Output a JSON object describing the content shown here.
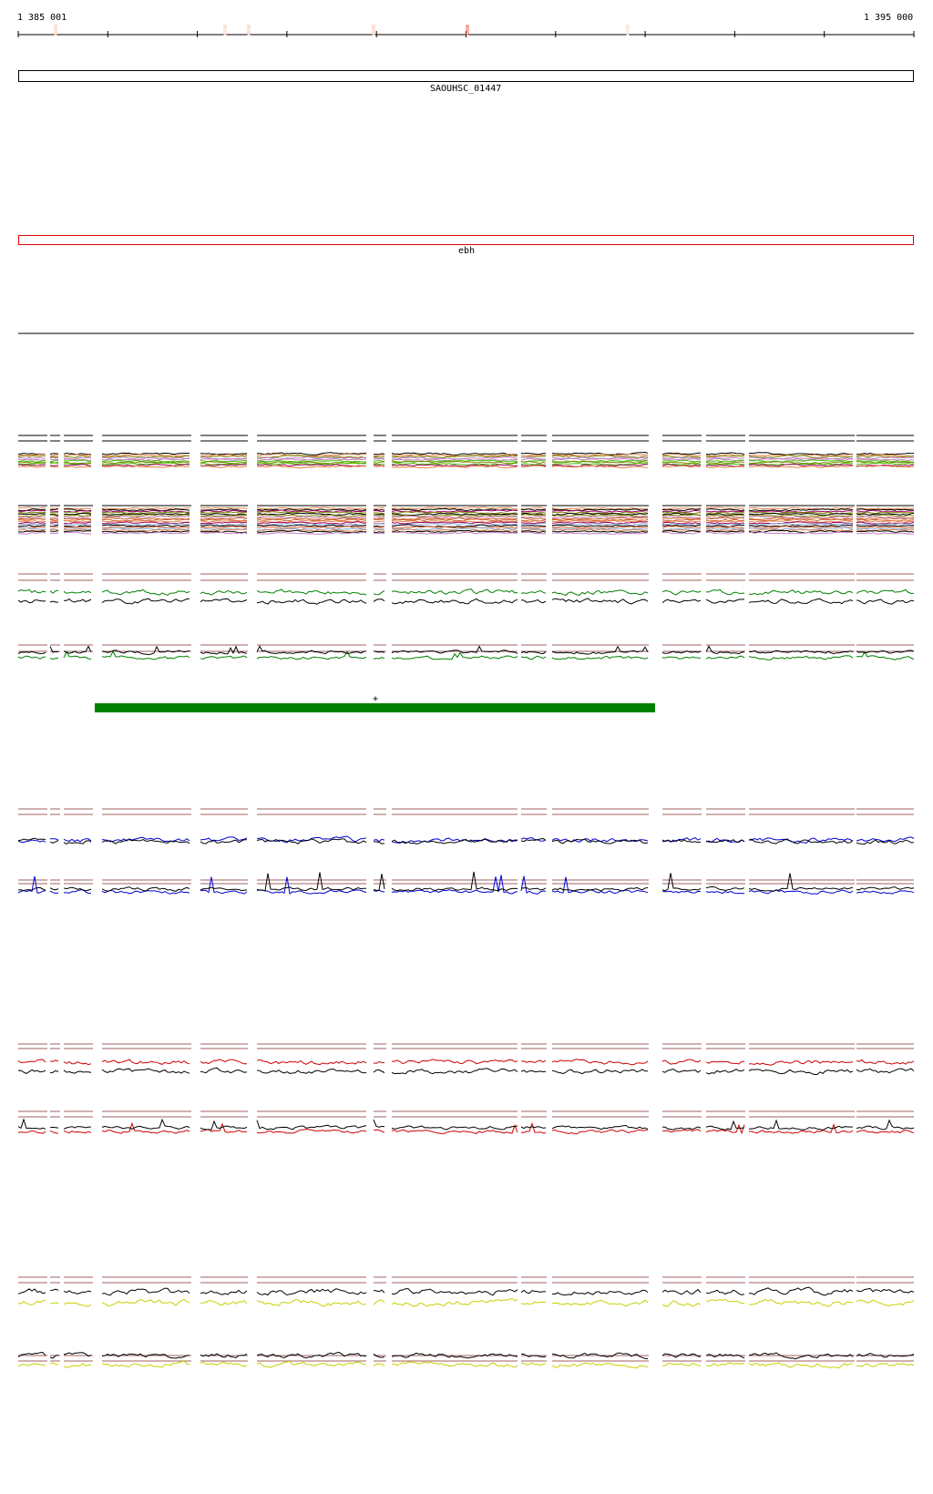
{
  "ruler": {
    "start_label": "1 385 001",
    "end_label": "1 395 000"
  },
  "genes": [
    {
      "name": "SAOUHSC_01447",
      "color": "#000000"
    },
    {
      "name": "ebh",
      "color": "#e00000"
    }
  ],
  "feature": {
    "strand_label": "+",
    "color": "#008000"
  },
  "tracks": [
    {
      "id": "multicolor-1",
      "colors": [
        "#000000",
        "#8aaee0",
        "#c080c0",
        "#808000",
        "#d06030",
        "#40c000",
        "#a00060",
        "#e08040"
      ]
    },
    {
      "id": "multicolor-2",
      "colors": [
        "#000000",
        "#8aaee0",
        "#c080c0",
        "#808000",
        "#d06030",
        "#40c000",
        "#a00060",
        "#e08040"
      ]
    },
    {
      "id": "green-1",
      "colors": [
        "#008000",
        "#000000"
      ]
    },
    {
      "id": "green-2",
      "colors": [
        "#008000",
        "#000000"
      ]
    },
    {
      "id": "blue-1",
      "colors": [
        "#0000d0",
        "#000000"
      ]
    },
    {
      "id": "blue-2",
      "colors": [
        "#0000d0",
        "#000000"
      ]
    },
    {
      "id": "red-1",
      "colors": [
        "#d00000",
        "#000000"
      ]
    },
    {
      "id": "red-2",
      "colors": [
        "#d00000",
        "#000000"
      ]
    },
    {
      "id": "yellow-1",
      "colors": [
        "#c8d000",
        "#000000"
      ]
    },
    {
      "id": "yellow-2",
      "colors": [
        "#c8d000",
        "#000000"
      ]
    }
  ],
  "threshold_color": "#a06060"
}
